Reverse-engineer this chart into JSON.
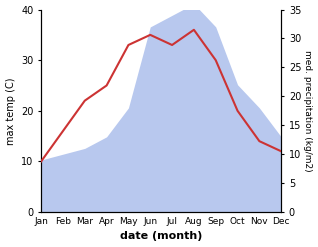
{
  "months": [
    "Jan",
    "Feb",
    "Mar",
    "Apr",
    "May",
    "Jun",
    "Jul",
    "Aug",
    "Sep",
    "Oct",
    "Nov",
    "Dec"
  ],
  "temperature": [
    10,
    16,
    22,
    25,
    33,
    35,
    33,
    36,
    30,
    20,
    14,
    12
  ],
  "precipitation": [
    9,
    10,
    11,
    13,
    18,
    32,
    34,
    36,
    32,
    22,
    18,
    13
  ],
  "temp_color": "#cc3333",
  "precip_color": "#b8c8ee",
  "ylabel_left": "max temp (C)",
  "ylabel_right": "med. precipitation (kg/m2)",
  "xlabel": "date (month)",
  "ylim_left": [
    0,
    40
  ],
  "ylim_right": [
    0,
    35
  ],
  "yticks_left": [
    0,
    10,
    20,
    30,
    40
  ],
  "yticks_right": [
    0,
    5,
    10,
    15,
    20,
    25,
    30,
    35
  ]
}
